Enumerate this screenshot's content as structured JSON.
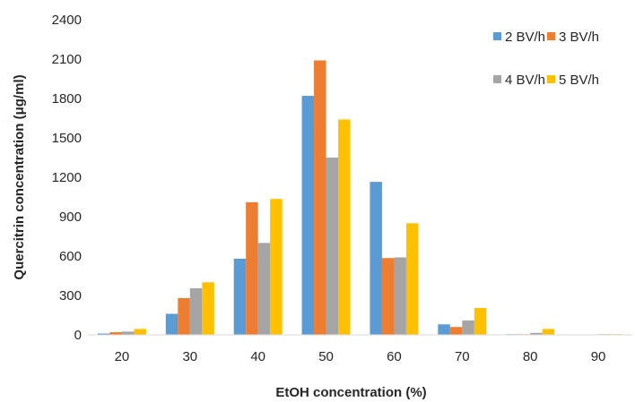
{
  "chart_data": {
    "type": "bar",
    "title": "",
    "xlabel": "EtOH concentration (%)",
    "ylabel": "Quercitrin concentration  (μg/ml)",
    "categories": [
      "20",
      "30",
      "40",
      "50",
      "60",
      "70",
      "80",
      "90"
    ],
    "ylim": [
      0,
      2400
    ],
    "yticks": [
      0,
      300,
      600,
      900,
      1200,
      1500,
      1800,
      2100,
      2400
    ],
    "grid": false,
    "legend_position": "top-right",
    "series": [
      {
        "name": "2 BV/h",
        "color": "#5B9BD5",
        "values": [
          10,
          160,
          580,
          1820,
          1165,
          80,
          5,
          3
        ]
      },
      {
        "name": "3 BV/h",
        "color": "#ED7D31",
        "values": [
          20,
          280,
          1010,
          2090,
          585,
          60,
          5,
          3
        ]
      },
      {
        "name": "4 BV/h",
        "color": "#A5A5A5",
        "values": [
          25,
          355,
          700,
          1350,
          590,
          110,
          15,
          5
        ]
      },
      {
        "name": "5 BV/h",
        "color": "#FFC000",
        "values": [
          45,
          400,
          1035,
          1640,
          850,
          205,
          45,
          5
        ]
      }
    ]
  }
}
